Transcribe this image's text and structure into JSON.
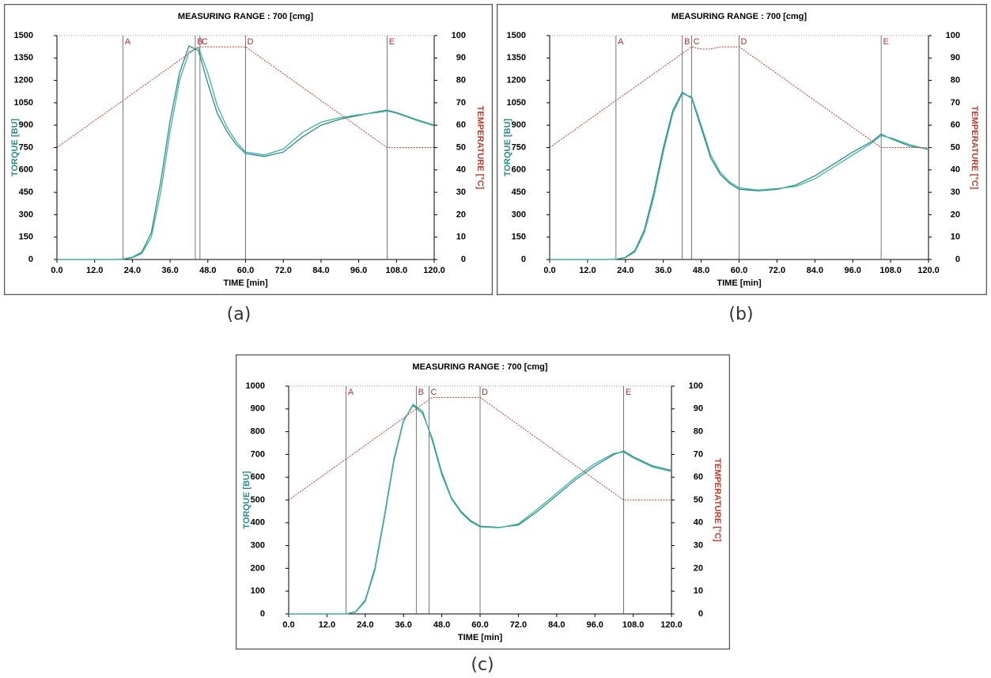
{
  "chart_data": [
    {
      "type": "line",
      "title": "MEASURING RANGE : 700 [cmg]",
      "xlabel": "TIME  [min]",
      "ylabel": "TORQUE  [BU]",
      "y2label": "TEMPERATURE  [°C]",
      "caption": "(a)",
      "x": [
        0,
        6,
        12,
        18,
        21,
        24,
        27,
        30,
        33,
        36,
        39,
        42,
        45,
        48,
        51,
        54,
        57,
        60,
        66,
        72,
        78,
        84,
        90,
        96,
        102,
        105,
        108,
        114,
        120
      ],
      "series": [
        {
          "color": "#2b8c8c",
          "values": [
            0,
            0,
            0,
            0,
            3,
            15,
            50,
            180,
            520,
            930,
            1250,
            1430,
            1400,
            1180,
            980,
            860,
            770,
            710,
            690,
            720,
            820,
            900,
            940,
            965,
            990,
            1000,
            985,
            940,
            900
          ]
        },
        {
          "color": "#3fb0a6",
          "values": [
            0,
            0,
            0,
            0,
            2,
            12,
            40,
            150,
            450,
            860,
            1200,
            1390,
            1420,
            1250,
            1030,
            890,
            790,
            720,
            700,
            740,
            850,
            920,
            950,
            970,
            985,
            995,
            980,
            935,
            895
          ]
        },
        {
          "color": "#c0392b",
          "axis": "y2",
          "values": [
            50,
            56,
            62,
            68,
            71,
            74,
            77,
            80,
            83,
            86,
            89,
            92,
            95,
            95,
            95,
            95,
            95,
            95,
            89,
            83,
            77,
            71,
            65,
            59,
            53,
            50,
            50,
            50,
            50
          ]
        }
      ],
      "markers": [
        {
          "label": "A",
          "x": 21
        },
        {
          "label": "B",
          "x": 44
        },
        {
          "label": "C",
          "x": 45.5
        },
        {
          "label": "D",
          "x": 60
        },
        {
          "label": "E",
          "x": 105
        }
      ],
      "xlim": [
        0,
        120
      ],
      "xticks": [
        {
          "value": 0,
          "label": "0.0"
        },
        {
          "value": 12,
          "label": "12.0"
        },
        {
          "value": 24,
          "label": "24.0"
        },
        {
          "value": 36,
          "label": "36.0"
        },
        {
          "value": 48,
          "label": "48.0"
        },
        {
          "value": 60,
          "label": "60.0"
        },
        {
          "value": 72,
          "label": "72.0"
        },
        {
          "value": 84,
          "label": "84.0"
        },
        {
          "value": 96,
          "label": "96.0"
        },
        {
          "value": 108,
          "label": "108.0"
        },
        {
          "value": 120,
          "label": "120.0"
        }
      ],
      "ylim": [
        0,
        1500
      ],
      "yticks": [
        0,
        150,
        300,
        450,
        600,
        750,
        900,
        1050,
        1200,
        1350,
        1500
      ],
      "y2lim": [
        0,
        100
      ],
      "y2ticks": [
        0,
        10,
        20,
        30,
        40,
        50,
        60,
        70,
        80,
        90,
        100
      ]
    },
    {
      "type": "line",
      "title": "MEASURING RANGE : 700 [cmg]",
      "xlabel": "TIME  [min]",
      "ylabel": "TORQUE  [BU]",
      "y2label": "TEMPERATURE  [°C]",
      "caption": "(b)",
      "x": [
        0,
        6,
        12,
        18,
        21,
        24,
        27,
        30,
        33,
        36,
        39,
        42,
        45,
        48,
        51,
        54,
        57,
        60,
        66,
        72,
        78,
        84,
        90,
        96,
        102,
        105,
        108,
        114,
        120
      ],
      "series": [
        {
          "color": "#2b8c8c",
          "values": [
            0,
            0,
            0,
            0,
            2,
            15,
            60,
            200,
            450,
            750,
            1000,
            1120,
            1080,
            880,
            680,
            570,
            510,
            470,
            460,
            470,
            500,
            560,
            640,
            720,
            790,
            840,
            810,
            760,
            740
          ]
        },
        {
          "color": "#3fb0a6",
          "values": [
            0,
            0,
            0,
            0,
            2,
            12,
            50,
            180,
            420,
            720,
            980,
            1110,
            1090,
            900,
            700,
            585,
            520,
            480,
            465,
            475,
            490,
            540,
            620,
            700,
            780,
            830,
            815,
            770,
            735
          ]
        },
        {
          "color": "#c0392b",
          "axis": "y2",
          "values": [
            50,
            56,
            62,
            68,
            71,
            74,
            77,
            80,
            83,
            86,
            89,
            92,
            95,
            94,
            94,
            95,
            95,
            95,
            89,
            83,
            77,
            71,
            65,
            59,
            53,
            50,
            50,
            50,
            50
          ]
        }
      ],
      "markers": [
        {
          "label": "A",
          "x": 21
        },
        {
          "label": "B",
          "x": 42
        },
        {
          "label": "C",
          "x": 45
        },
        {
          "label": "D",
          "x": 60
        },
        {
          "label": "E",
          "x": 105
        }
      ],
      "xlim": [
        0,
        120
      ],
      "xticks": [
        {
          "value": 0,
          "label": "0.0"
        },
        {
          "value": 12,
          "label": "12.0"
        },
        {
          "value": 24,
          "label": "24.0"
        },
        {
          "value": 36,
          "label": "36.0"
        },
        {
          "value": 48,
          "label": "48.0"
        },
        {
          "value": 60,
          "label": "60.0"
        },
        {
          "value": 72,
          "label": "72.0"
        },
        {
          "value": 84,
          "label": "84.0"
        },
        {
          "value": 96,
          "label": "96.0"
        },
        {
          "value": 108,
          "label": "108.0"
        },
        {
          "value": 120,
          "label": "120.0"
        }
      ],
      "ylim": [
        0,
        1500
      ],
      "yticks": [
        0,
        150,
        300,
        450,
        600,
        750,
        900,
        1050,
        1200,
        1350,
        1500
      ],
      "y2lim": [
        0,
        100
      ],
      "y2ticks": [
        0,
        10,
        20,
        30,
        40,
        50,
        60,
        70,
        80,
        90,
        100
      ]
    },
    {
      "type": "line",
      "title": "MEASURING RANGE : 700 [cmg]",
      "xlabel": "TIME  [min]",
      "ylabel": "TORQUE  [BU]",
      "y2label": "TEMPERATURE  [°C]",
      "caption": "(c)",
      "x": [
        0,
        6,
        12,
        18,
        21,
        24,
        27,
        30,
        33,
        36,
        39,
        42,
        45,
        48,
        51,
        54,
        57,
        60,
        66,
        72,
        78,
        84,
        90,
        96,
        102,
        105,
        108,
        114,
        120
      ],
      "series": [
        {
          "color": "#2b8c8c",
          "values": [
            0,
            0,
            0,
            0,
            10,
            60,
            200,
            430,
            680,
            850,
            915,
            880,
            770,
            620,
            510,
            450,
            410,
            385,
            380,
            390,
            450,
            520,
            590,
            650,
            700,
            715,
            690,
            650,
            630
          ]
        },
        {
          "color": "#3fb0a6",
          "values": [
            0,
            0,
            0,
            0,
            8,
            55,
            190,
            420,
            670,
            845,
            920,
            890,
            760,
            610,
            505,
            445,
            405,
            382,
            378,
            395,
            460,
            530,
            600,
            660,
            705,
            710,
            685,
            645,
            625
          ]
        },
        {
          "color": "#c0392b",
          "axis": "y2",
          "values": [
            50,
            56,
            62,
            68,
            71,
            74,
            77,
            80,
            83,
            86,
            89,
            92,
            95,
            95,
            95,
            95,
            95,
            95,
            89,
            83,
            77,
            71,
            65,
            59,
            53,
            50,
            50,
            50,
            50
          ]
        }
      ],
      "markers": [
        {
          "label": "A",
          "x": 18
        },
        {
          "label": "B",
          "x": 40
        },
        {
          "label": "C",
          "x": 44
        },
        {
          "label": "D",
          "x": 60
        },
        {
          "label": "E",
          "x": 105
        }
      ],
      "xlim": [
        0,
        120
      ],
      "xticks": [
        {
          "value": 0,
          "label": "0.0"
        },
        {
          "value": 12,
          "label": "12.0"
        },
        {
          "value": 24,
          "label": "24.0"
        },
        {
          "value": 36,
          "label": "36.0"
        },
        {
          "value": 48,
          "label": "48.0"
        },
        {
          "value": 60,
          "label": "60.0"
        },
        {
          "value": 72,
          "label": "72.0"
        },
        {
          "value": 84,
          "label": "84.0"
        },
        {
          "value": 96,
          "label": "96.0"
        },
        {
          "value": 108,
          "label": "108.0"
        },
        {
          "value": 120,
          "label": "120.0"
        }
      ],
      "ylim": [
        0,
        1000
      ],
      "yticks": [
        0,
        100,
        200,
        300,
        400,
        500,
        600,
        700,
        800,
        900,
        1000
      ],
      "y2lim": [
        0,
        100
      ],
      "y2ticks": [
        0,
        10,
        20,
        30,
        40,
        50,
        60,
        70,
        80,
        90,
        100
      ]
    }
  ]
}
